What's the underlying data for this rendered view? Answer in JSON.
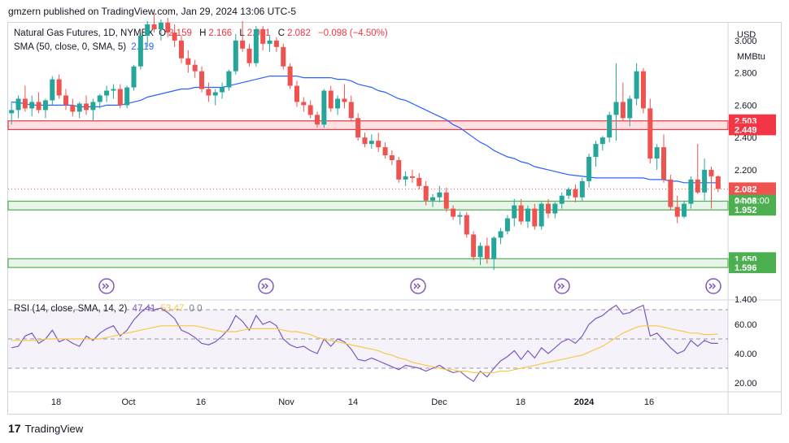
{
  "header": {
    "publisher": "gmzern published on TradingView.com, Jan 29, 2024 13:06 UTC-5"
  },
  "legend": {
    "symbol": "Natural Gas Futures, 1D, NYMEX",
    "o_label": "O",
    "o_value": "2.159",
    "h_label": "H",
    "h_value": "2.166",
    "l_label": "L",
    "l_value": "2.061",
    "c_label": "C",
    "c_value": "2.082",
    "change": "−0.098 (−4.50%)",
    "sma_label": "SMA (50, close, 0, SMA, 5)",
    "sma_value": "2.119"
  },
  "units": {
    "currency": "USD",
    "unit": "MMBtu"
  },
  "rsi_legend": {
    "label": "RSI (14, close, SMA, 14, 2)",
    "value": "47.41",
    "sma_value": "53.47",
    "extra": "0  0"
  },
  "footer": {
    "brand": "TradingView"
  },
  "colors": {
    "up": "#26a69a",
    "down": "#ef5350",
    "sma": "#2962ff",
    "rsi": "#7e57c2",
    "rsi_sma": "#f7c948",
    "resistance": "#f23645",
    "support": "#4caf50"
  },
  "chart_data": [
    {
      "type": "candlestick",
      "ylim": [
        1.4,
        3.1
      ],
      "y_ticks": [
        "3.000",
        "2.800",
        "2.600",
        "2.400",
        "2.200",
        "2.000",
        "1.400"
      ],
      "x_ticks": [
        "18",
        "Oct",
        "16",
        "Nov",
        "14",
        "Dec",
        "18",
        "2024",
        "16"
      ],
      "price_labels": [
        {
          "value": 2.503,
          "text": "2.503",
          "kind": "resistance"
        },
        {
          "value": 2.449,
          "text": "2.449",
          "kind": "resistance"
        },
        {
          "value": 2.082,
          "text": "2.082",
          "kind": "last"
        },
        {
          "value": 2.006,
          "text": "2.006",
          "kind": "support"
        },
        {
          "value": 1.952,
          "text": "1.952",
          "kind": "support"
        },
        {
          "value": 1.65,
          "text": "1.650",
          "kind": "support"
        },
        {
          "value": 1.596,
          "text": "1.596",
          "kind": "support"
        }
      ],
      "countdown": "04:03:00",
      "zones": [
        {
          "from": 2.449,
          "to": 2.503,
          "kind": "resistance"
        },
        {
          "from": 1.952,
          "to": 2.006,
          "kind": "support"
        },
        {
          "from": 1.596,
          "to": 1.65,
          "kind": "support"
        }
      ],
      "candles": [
        [
          2.55,
          2.62,
          2.48,
          2.57
        ],
        [
          2.57,
          2.66,
          2.52,
          2.64
        ],
        [
          2.64,
          2.72,
          2.56,
          2.58
        ],
        [
          2.58,
          2.66,
          2.53,
          2.62
        ],
        [
          2.62,
          2.68,
          2.55,
          2.57
        ],
        [
          2.57,
          2.64,
          2.52,
          2.63
        ],
        [
          2.63,
          2.78,
          2.6,
          2.76
        ],
        [
          2.76,
          2.79,
          2.64,
          2.66
        ],
        [
          2.66,
          2.7,
          2.57,
          2.6
        ],
        [
          2.6,
          2.64,
          2.53,
          2.56
        ],
        [
          2.56,
          2.62,
          2.52,
          2.61
        ],
        [
          2.61,
          2.66,
          2.54,
          2.57
        ],
        [
          2.57,
          2.64,
          2.5,
          2.62
        ],
        [
          2.62,
          2.67,
          2.58,
          2.66
        ],
        [
          2.66,
          2.72,
          2.62,
          2.69
        ],
        [
          2.69,
          2.73,
          2.64,
          2.7
        ],
        [
          2.7,
          2.73,
          2.58,
          2.6
        ],
        [
          2.6,
          2.72,
          2.58,
          2.71
        ],
        [
          2.71,
          2.85,
          2.69,
          2.84
        ],
        [
          2.84,
          3.05,
          2.82,
          3.03
        ],
        [
          3.03,
          3.12,
          2.96,
          3.1
        ],
        [
          3.1,
          3.17,
          3.05,
          3.07
        ],
        [
          3.07,
          3.13,
          3.0,
          3.11
        ],
        [
          3.11,
          3.14,
          3.02,
          3.05
        ],
        [
          3.05,
          3.1,
          2.96,
          3.0
        ],
        [
          3.0,
          3.03,
          2.86,
          2.89
        ],
        [
          2.89,
          2.94,
          2.8,
          2.85
        ],
        [
          2.85,
          2.88,
          2.77,
          2.81
        ],
        [
          2.81,
          2.84,
          2.68,
          2.7
        ],
        [
          2.7,
          2.74,
          2.62,
          2.66
        ],
        [
          2.66,
          2.7,
          2.6,
          2.68
        ],
        [
          2.68,
          2.74,
          2.64,
          2.71
        ],
        [
          2.71,
          2.82,
          2.69,
          2.81
        ],
        [
          2.81,
          3.04,
          2.79,
          3.0
        ],
        [
          3.0,
          3.12,
          2.93,
          2.95
        ],
        [
          2.95,
          2.98,
          2.84,
          2.86
        ],
        [
          2.86,
          3.09,
          2.84,
          3.07
        ],
        [
          3.07,
          3.09,
          2.94,
          2.98
        ],
        [
          2.98,
          3.03,
          2.93,
          3.0
        ],
        [
          3.0,
          3.02,
          2.93,
          2.96
        ],
        [
          2.96,
          2.98,
          2.82,
          2.84
        ],
        [
          2.84,
          2.86,
          2.7,
          2.72
        ],
        [
          2.72,
          2.75,
          2.59,
          2.62
        ],
        [
          2.62,
          2.65,
          2.56,
          2.6
        ],
        [
          2.6,
          2.63,
          2.52,
          2.54
        ],
        [
          2.54,
          2.56,
          2.46,
          2.48
        ],
        [
          2.48,
          2.7,
          2.46,
          2.69
        ],
        [
          2.69,
          2.72,
          2.56,
          2.58
        ],
        [
          2.58,
          2.66,
          2.54,
          2.64
        ],
        [
          2.64,
          2.73,
          2.58,
          2.62
        ],
        [
          2.62,
          2.66,
          2.5,
          2.52
        ],
        [
          2.52,
          2.55,
          2.38,
          2.4
        ],
        [
          2.4,
          2.43,
          2.34,
          2.36
        ],
        [
          2.36,
          2.42,
          2.33,
          2.38
        ],
        [
          2.38,
          2.43,
          2.31,
          2.34
        ],
        [
          2.34,
          2.37,
          2.27,
          2.29
        ],
        [
          2.29,
          2.32,
          2.23,
          2.26
        ],
        [
          2.26,
          2.28,
          2.12,
          2.14
        ],
        [
          2.14,
          2.19,
          2.1,
          2.16
        ],
        [
          2.16,
          2.2,
          2.12,
          2.15
        ],
        [
          2.15,
          2.18,
          2.08,
          2.1
        ],
        [
          2.1,
          2.13,
          1.98,
          2.01
        ],
        [
          2.01,
          2.05,
          1.97,
          2.03
        ],
        [
          2.03,
          2.1,
          2.0,
          2.06
        ],
        [
          2.06,
          2.09,
          1.94,
          1.96
        ],
        [
          1.96,
          1.98,
          1.89,
          1.91
        ],
        [
          1.91,
          1.94,
          1.86,
          1.92
        ],
        [
          1.92,
          1.94,
          1.78,
          1.8
        ],
        [
          1.8,
          1.82,
          1.64,
          1.66
        ],
        [
          1.66,
          1.75,
          1.61,
          1.73
        ],
        [
          1.73,
          1.78,
          1.62,
          1.65
        ],
        [
          1.65,
          1.79,
          1.58,
          1.78
        ],
        [
          1.78,
          1.84,
          1.74,
          1.82
        ],
        [
          1.82,
          1.92,
          1.8,
          1.9
        ],
        [
          1.9,
          2.02,
          1.85,
          1.98
        ],
        [
          1.98,
          2.02,
          1.86,
          1.88
        ],
        [
          1.88,
          1.98,
          1.84,
          1.96
        ],
        [
          1.96,
          1.99,
          1.83,
          1.85
        ],
        [
          1.85,
          2.0,
          1.83,
          1.99
        ],
        [
          1.99,
          2.02,
          1.9,
          1.93
        ],
        [
          1.93,
          2.0,
          1.9,
          1.99
        ],
        [
          1.99,
          2.06,
          1.96,
          2.04
        ],
        [
          2.04,
          2.09,
          2.02,
          2.08
        ],
        [
          2.08,
          2.11,
          2.0,
          2.03
        ],
        [
          2.03,
          2.15,
          2.01,
          2.13
        ],
        [
          2.13,
          2.3,
          2.09,
          2.28
        ],
        [
          2.28,
          2.38,
          2.22,
          2.36
        ],
        [
          2.36,
          2.41,
          2.32,
          2.4
        ],
        [
          2.4,
          2.56,
          2.37,
          2.54
        ],
        [
          2.54,
          2.86,
          2.38,
          2.62
        ],
        [
          2.62,
          2.74,
          2.5,
          2.52
        ],
        [
          2.52,
          2.66,
          2.47,
          2.64
        ],
        [
          2.64,
          2.86,
          2.6,
          2.81
        ],
        [
          2.81,
          2.83,
          2.55,
          2.58
        ],
        [
          2.58,
          2.64,
          2.24,
          2.27
        ],
        [
          2.27,
          2.36,
          2.2,
          2.34
        ],
        [
          2.34,
          2.42,
          2.12,
          2.14
        ],
        [
          2.14,
          2.17,
          1.95,
          1.97
        ],
        [
          1.97,
          2.04,
          1.87,
          1.91
        ],
        [
          1.91,
          2.01,
          1.9,
          1.99
        ],
        [
          1.99,
          2.16,
          1.96,
          2.14
        ],
        [
          2.14,
          2.36,
          2.05,
          2.06
        ],
        [
          2.06,
          2.27,
          2.01,
          2.2
        ],
        [
          2.2,
          2.22,
          1.96,
          2.16
        ],
        [
          2.16,
          2.166,
          2.061,
          2.082
        ]
      ],
      "sma": [
        2.62,
        2.615,
        2.61,
        2.6,
        2.6,
        2.6,
        2.6,
        2.6,
        2.6,
        2.6,
        2.59,
        2.59,
        2.59,
        2.59,
        2.6,
        2.6,
        2.6,
        2.61,
        2.62,
        2.63,
        2.65,
        2.66,
        2.67,
        2.68,
        2.69,
        2.7,
        2.7,
        2.71,
        2.71,
        2.71,
        2.71,
        2.71,
        2.72,
        2.73,
        2.74,
        2.75,
        2.76,
        2.77,
        2.78,
        2.78,
        2.78,
        2.78,
        2.78,
        2.77,
        2.77,
        2.77,
        2.77,
        2.77,
        2.76,
        2.76,
        2.75,
        2.73,
        2.72,
        2.71,
        2.69,
        2.68,
        2.66,
        2.64,
        2.63,
        2.61,
        2.59,
        2.57,
        2.55,
        2.53,
        2.51,
        2.48,
        2.46,
        2.43,
        2.4,
        2.37,
        2.35,
        2.32,
        2.3,
        2.28,
        2.27,
        2.25,
        2.24,
        2.22,
        2.21,
        2.2,
        2.19,
        2.18,
        2.17,
        2.165,
        2.16,
        2.155,
        2.15,
        2.15,
        2.15,
        2.15,
        2.15,
        2.15,
        2.15,
        2.15,
        2.14,
        2.14,
        2.14,
        2.13,
        2.13,
        2.12,
        2.12,
        2.12,
        2.12,
        2.12,
        2.119
      ]
    },
    {
      "type": "line",
      "title": "RSI (14, close, SMA, 14, 2)",
      "ylim": [
        15,
        75
      ],
      "y_ticks": [
        "60.00",
        "40.00",
        "20.00"
      ],
      "bands": [
        70,
        50,
        30
      ],
      "series": [
        {
          "name": "RSI",
          "values": [
            44,
            45,
            52,
            54,
            47,
            50,
            56,
            48,
            50,
            47,
            45,
            52,
            49,
            54,
            57,
            59,
            52,
            56,
            63,
            68,
            72,
            70,
            71,
            68,
            64,
            56,
            54,
            51,
            47,
            46,
            48,
            52,
            57,
            66,
            62,
            56,
            66,
            60,
            62,
            59,
            50,
            46,
            44,
            45,
            42,
            40,
            50,
            45,
            50,
            48,
            43,
            36,
            35,
            37,
            35,
            33,
            31,
            29,
            32,
            31,
            30,
            28,
            30,
            32,
            29,
            27,
            28,
            24,
            21,
            28,
            24,
            30,
            35,
            38,
            42,
            36,
            42,
            37,
            44,
            40,
            44,
            48,
            50,
            47,
            52,
            60,
            64,
            66,
            70,
            73,
            67,
            68,
            71,
            73,
            52,
            54,
            49,
            44,
            40,
            42,
            49,
            45,
            49,
            47,
            47
          ]
        },
        {
          "name": "RSI SMA",
          "values": [
            49,
            49,
            49,
            49,
            49,
            50,
            50,
            50,
            50,
            50,
            50,
            50,
            50,
            50,
            51,
            52,
            53,
            54,
            55,
            56,
            57,
            58,
            59,
            59,
            59,
            59,
            59,
            59,
            58,
            57,
            56,
            55,
            55,
            55,
            56,
            57,
            57,
            57,
            57,
            57,
            56,
            55,
            55,
            54,
            53,
            51,
            50,
            49,
            48,
            47,
            46,
            45,
            44,
            43,
            42,
            40,
            39,
            37,
            36,
            34,
            33,
            32,
            31,
            30,
            29,
            29,
            28,
            28,
            27,
            27,
            27,
            27,
            28,
            28,
            29,
            30,
            31,
            32,
            33,
            34,
            35,
            36,
            37,
            38,
            39,
            41,
            43,
            45,
            48,
            51,
            54,
            56,
            58,
            59,
            59,
            59,
            58,
            57,
            56,
            55,
            54,
            54,
            53,
            53,
            53.47
          ]
        }
      ]
    }
  ]
}
